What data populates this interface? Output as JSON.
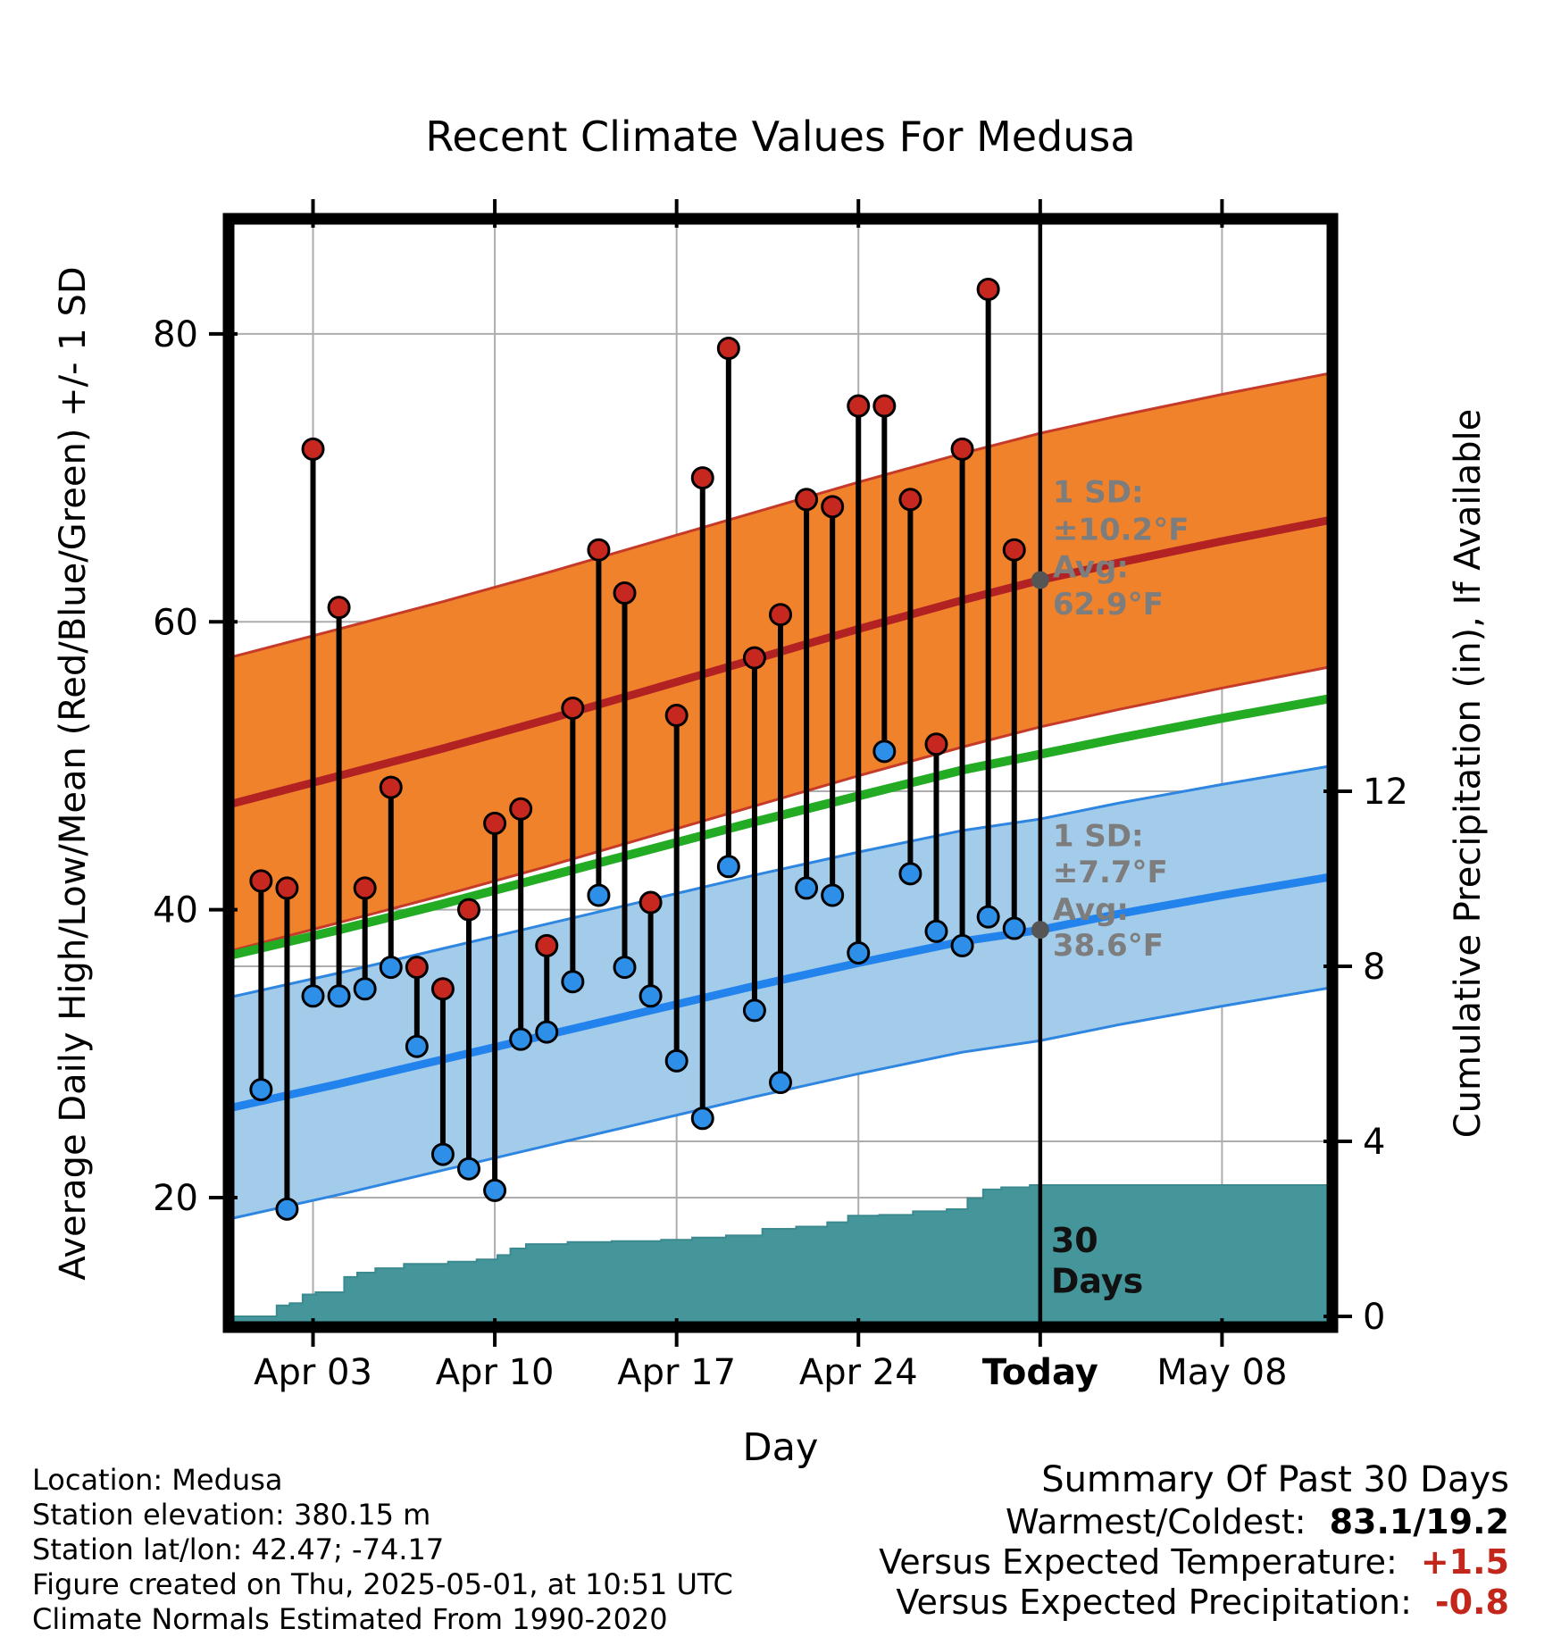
{
  "chart_data": {
    "type": "line",
    "title": "Recent Climate Values For Medusa",
    "xlabel": "Day",
    "ylabel_left": "Average Daily High/Low/Mean (Red/Blue/Green) +/- 1 SD",
    "ylabel_right": "Cumulative Precipitation (in), If Available",
    "xlim": [
      -0.25,
      42.25
    ],
    "temp_lim": [
      11,
      88
    ],
    "x_ticks": [
      {
        "day": 3,
        "label": "Apr 03",
        "bold": false
      },
      {
        "day": 10,
        "label": "Apr 10",
        "bold": false
      },
      {
        "day": 17,
        "label": "Apr 17",
        "bold": false
      },
      {
        "day": 24,
        "label": "Apr 24",
        "bold": false
      },
      {
        "day": 31,
        "label": "Today",
        "bold": true
      },
      {
        "day": 38,
        "label": "May 08",
        "bold": false
      }
    ],
    "temp_ticks": [
      20,
      40,
      60,
      80
    ],
    "precip_ticks": [
      0,
      4,
      8,
      12
    ],
    "today_day": 31,
    "normals": {
      "days": [
        -0.25,
        4,
        8,
        12,
        16,
        20,
        24,
        28,
        31,
        34,
        38,
        42.25
      ],
      "high_mean": [
        47.3,
        49.3,
        51.2,
        53.2,
        55.3,
        57.4,
        59.5,
        61.5,
        62.9,
        64.1,
        65.6,
        67.1
      ],
      "low_mean": [
        26.2,
        27.9,
        29.6,
        31.3,
        33.0,
        34.7,
        36.3,
        37.8,
        38.6,
        39.7,
        41.0,
        42.3
      ],
      "mean": [
        36.8,
        38.6,
        40.4,
        42.3,
        44.2,
        46.1,
        47.9,
        49.7,
        50.8,
        51.9,
        53.3,
        54.7
      ],
      "high_sd": 10.2,
      "low_sd": 7.7
    },
    "daily": {
      "days": [
        1,
        2,
        3,
        4,
        5,
        6,
        7,
        8,
        9,
        10,
        11,
        12,
        13,
        14,
        15,
        16,
        17,
        18,
        19,
        20,
        21,
        22,
        23,
        24,
        25,
        26,
        27,
        28,
        29,
        30
      ],
      "high": [
        42,
        41.5,
        72,
        61,
        41.5,
        48.5,
        36,
        34.5,
        40,
        46,
        47,
        37.5,
        54,
        65,
        62,
        40.5,
        53.5,
        70,
        79,
        57.5,
        60.5,
        68.5,
        68,
        75,
        75,
        68.5,
        51.5,
        72,
        83.1,
        65
      ],
      "low": [
        27.5,
        19.2,
        34,
        34,
        34.5,
        36,
        30.5,
        23,
        22,
        20.5,
        31,
        31.5,
        35,
        41,
        36,
        34,
        29.5,
        25.5,
        43,
        33,
        28,
        41.5,
        41,
        37,
        51,
        42.5,
        38.5,
        37.5,
        39.5,
        38.7
      ]
    },
    "precip_cumulative": {
      "days": [
        -0.25,
        1.6,
        2.1,
        2.6,
        3.1,
        4.2,
        4.7,
        5.4,
        6.5,
        8.2,
        9.3,
        10.1,
        10.6,
        11.2,
        12.8,
        14.5,
        16.4,
        17.6,
        18.9,
        20.3,
        21.6,
        22.8,
        23.6,
        24.8,
        26.1,
        27.4,
        28.2,
        28.8,
        29.5,
        30.6,
        42.25
      ],
      "values": [
        0,
        0.25,
        0.3,
        0.5,
        0.55,
        0.9,
        1.0,
        1.1,
        1.2,
        1.25,
        1.3,
        1.4,
        1.55,
        1.65,
        1.7,
        1.72,
        1.75,
        1.8,
        1.85,
        2.0,
        2.05,
        2.15,
        2.3,
        2.32,
        2.4,
        2.45,
        2.7,
        2.9,
        2.95,
        3.0,
        3.0
      ]
    },
    "annotations": {
      "high": {
        "sd_label": "1 SD:",
        "sd_value": "±10.2°F",
        "avg_label": "Avg:",
        "avg_value": "62.9°F",
        "avg_temp": 62.9,
        "text_temps": [
          68.3,
          65.7,
          63.1,
          60.5
        ]
      },
      "low": {
        "sd_label": "1 SD:",
        "sd_value": "±7.7°F",
        "avg_label": "Avg:",
        "avg_value": "38.6°F",
        "avg_temp": 38.6,
        "text_temps": [
          44.4,
          41.9,
          39.3,
          36.8
        ]
      },
      "window": {
        "line1": "30",
        "line2": "Days",
        "temps": [
          16.2,
          13.4
        ]
      }
    },
    "colors": {
      "grid": "#ADADAD",
      "high_band": "#F0822C",
      "high_edge": "#C53A28",
      "high_line": "#B22222",
      "low_band": "#A3CBEA",
      "low_edge": "#2E86E0",
      "low_line": "#2383EC",
      "mean_line": "#23AB23",
      "precip_fill": "#45969B",
      "precip_edge": "#3A8A8F",
      "high_dot": "#C62820",
      "low_dot": "#2E8FE8",
      "annotation_text": "#7D7D7D",
      "annotation_dot": "#555555",
      "window_text": "#111111"
    }
  },
  "footer": {
    "lines": [
      "Location: Medusa",
      "Station elevation: 380.15 m",
      "Station lat/lon: 42.47; -74.17",
      "Figure created on Thu, 2025-05-01, at 10:51 UTC",
      "Climate Normals Estimated From 1990-2020"
    ]
  },
  "summary": {
    "title": "Summary Of Past 30 Days",
    "rows": [
      {
        "label": "Warmest/Coldest:",
        "value": "83.1/19.2",
        "value_style": "color:#000000;font-weight:bold;"
      },
      {
        "label": "Versus Expected Temperature:",
        "value": "+1.5",
        "value_style": "color:#C3271B;font-weight:bold;"
      },
      {
        "label": "Versus Expected Precipitation:",
        "value": "-0.8",
        "value_style": "color:#C3271B;font-weight:bold;"
      }
    ]
  }
}
